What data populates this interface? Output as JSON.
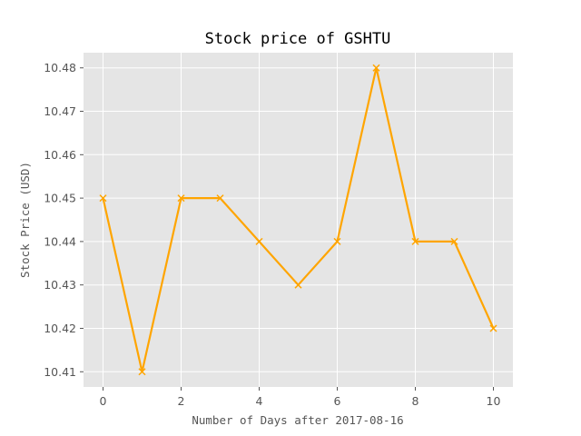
{
  "chart_data": {
    "type": "line",
    "title": "Stock price of GSHTU",
    "xlabel": "Number of Days after 2017-08-16",
    "ylabel": "Stock Price (USD)",
    "x": [
      0,
      1,
      2,
      3,
      4,
      5,
      6,
      7,
      8,
      9,
      10
    ],
    "series": [
      {
        "values": [
          10.45,
          10.41,
          10.45,
          10.45,
          10.44,
          10.43,
          10.44,
          10.48,
          10.44,
          10.44,
          10.42
        ],
        "color": "#ffa500",
        "marker": "x"
      }
    ],
    "xticks": [
      "0",
      "2",
      "4",
      "6",
      "8",
      "10"
    ],
    "yticks": [
      "10.41",
      "10.42",
      "10.43",
      "10.44",
      "10.45",
      "10.46",
      "10.47",
      "10.48"
    ],
    "xlim": [
      -0.5,
      10.5
    ],
    "ylim": [
      10.4065,
      10.4835
    ],
    "grid": true,
    "background": "#e5e5e5",
    "grid_color": "#ffffff"
  }
}
